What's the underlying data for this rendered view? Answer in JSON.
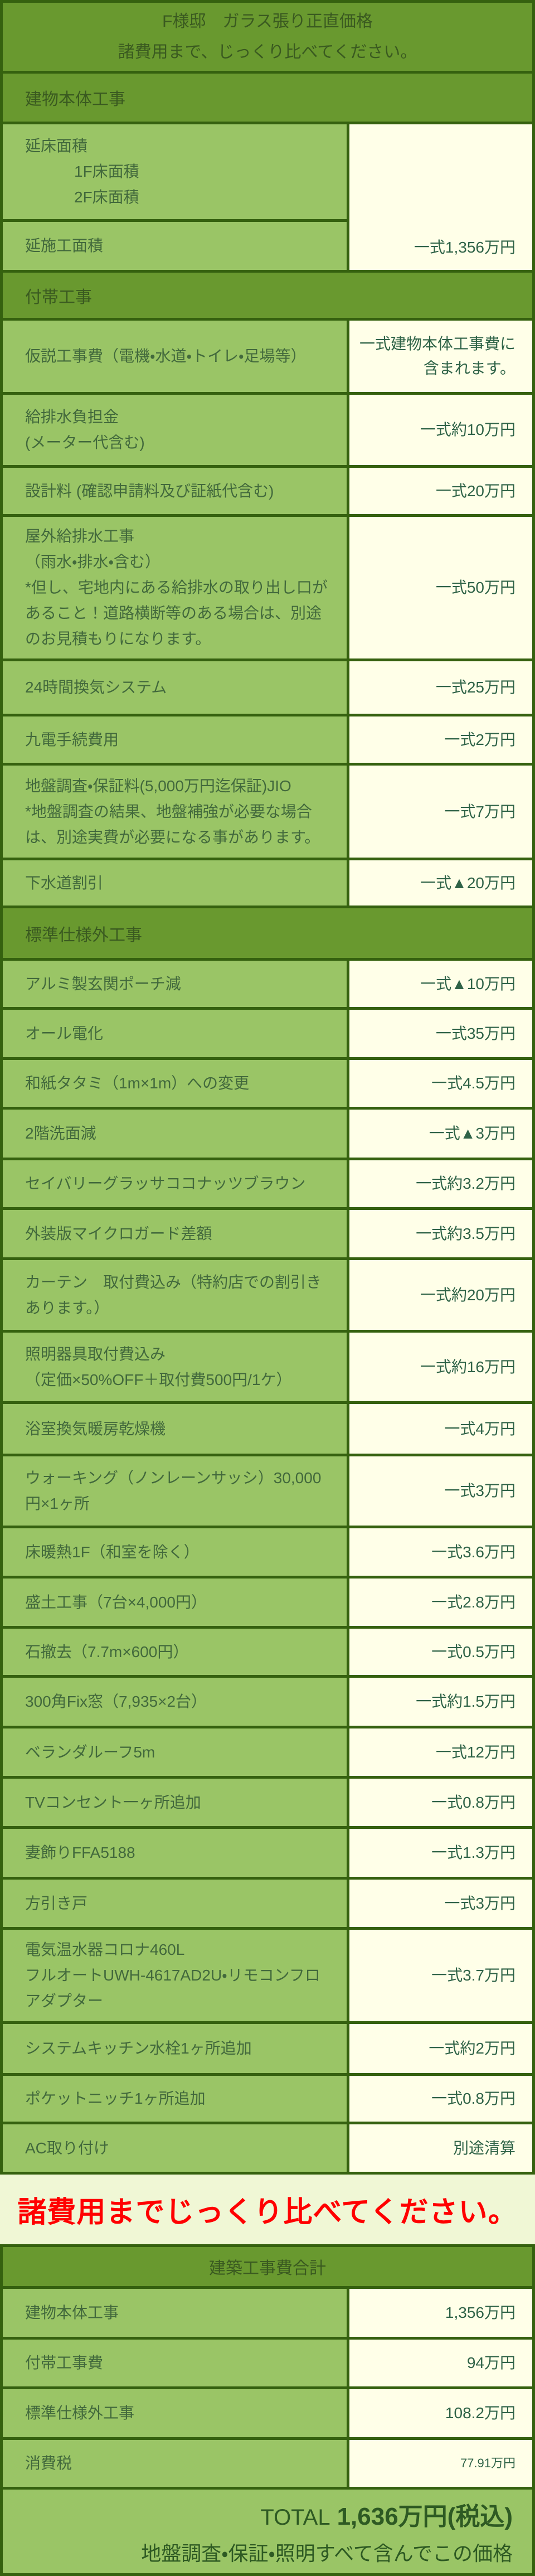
{
  "colors": {
    "border": "#35610f",
    "header_bg": "#69992f",
    "header_text": "#3a5a20",
    "label_bg": "#9ac566",
    "label_text": "#42693c",
    "value_bg": "#ffffe8",
    "value_text": "#2f6347",
    "banner_bg": "#f0f7d5",
    "banner_text": "#ff0000",
    "footer_text": "#2e5a23"
  },
  "header": {
    "title": "F様邸　ガラス張り正直価格",
    "subtitle": "諸費用まで、じっくり比べてください。"
  },
  "main_table": {
    "sections": [
      {
        "heading": "建物本体工事",
        "span_group": {
          "top_label_lines": [
            "延床面積",
            "1F床面積",
            "2F床面積"
          ],
          "top_indent_from": 1,
          "bottom_label": "延施工面積",
          "value": "一式1,356万円"
        }
      },
      {
        "heading": "付帯工事",
        "rows": [
          {
            "lines": [
              "仮説工事費（電機・水道・トイレ・足場等）"
            ],
            "value": "一式建物本体工事費に含まれます。"
          },
          {
            "lines": [
              "給排水負担金",
              "(メーター代含む)"
            ],
            "value": "一式約10万円"
          },
          {
            "lines": [
              "設計料 (確認申請料及び証紙代含む)"
            ],
            "value": "一式20万円"
          },
          {
            "lines": [
              "屋外給排水工事",
              "（雨水・排水・含む）",
              "*但し、宅地内にある給排水の取り出し口があること！道路横断等のある場合は、別途のお見積もりになります。"
            ],
            "value": "一式50万円"
          },
          {
            "lines": [
              "24時間換気システム"
            ],
            "value": "一式25万円"
          },
          {
            "lines": [
              "九電手続費用"
            ],
            "value": "一式2万円"
          },
          {
            "lines": [
              "地盤調査・保証料(5,000万円迄保証)JIO",
              "*地盤調査の結果、地盤補強が必要な場合は、別途実費が必要になる事があります。"
            ],
            "value": "一式7万円"
          },
          {
            "lines": [
              "下水道割引"
            ],
            "value": "一式▲20万円"
          }
        ]
      },
      {
        "heading": "標準仕様外工事",
        "rows": [
          {
            "lines": [
              "アルミ製玄関ポーチ減"
            ],
            "value": "一式▲10万円"
          },
          {
            "lines": [
              "オール電化"
            ],
            "value": "一式35万円"
          },
          {
            "lines": [
              "和紙タタミ（1m×1m）への変更"
            ],
            "value": "一式4.5万円"
          },
          {
            "lines": [
              "2階洗面減"
            ],
            "value": "一式▲3万円"
          },
          {
            "lines": [
              "セイバリーグラッサココナッツブラウン"
            ],
            "value": "一式約3.2万円"
          },
          {
            "lines": [
              "外装版マイクロガード差額"
            ],
            "value": "一式約3.5万円"
          },
          {
            "lines": [
              "カーテン　取付費込み（特約店での割引きあります。）"
            ],
            "value": "一式約20万円"
          },
          {
            "lines": [
              "照明器具取付費込み",
              "（定価×50%OFF＋取付費500円/1ケ）"
            ],
            "value": "一式約16万円"
          },
          {
            "lines": [
              "浴室換気暖房乾燥機"
            ],
            "value": "一式4万円"
          },
          {
            "lines": [
              "ウォーキング（ノンレーンサッシ）30,000円×1ヶ所"
            ],
            "value": "一式3万円"
          },
          {
            "lines": [
              "床暖熱1F（和室を除く）"
            ],
            "value": "一式3.6万円"
          },
          {
            "lines": [
              "盛土工事（7台×4,000円）"
            ],
            "value": "一式2.8万円"
          },
          {
            "lines": [
              "石撤去（7.7m×600円）"
            ],
            "value": "一式0.5万円"
          },
          {
            "lines": [
              "300角Fix窓（7,935×2台）"
            ],
            "value": "一式約1.5万円"
          },
          {
            "lines": [
              "ベランダルーフ5m"
            ],
            "value": "一式12万円"
          },
          {
            "lines": [
              "TVコンセント一ヶ所追加"
            ],
            "value": "一式0.8万円"
          },
          {
            "lines": [
              "妻飾りFFA5188"
            ],
            "value": "一式1.3万円"
          },
          {
            "lines": [
              "方引き戸"
            ],
            "value": "一式3万円"
          },
          {
            "lines": [
              "電気温水器コロナ460L",
              "フルオートUWH-4617AD2U・リモコンフロアダプター"
            ],
            "value": "一式3.7万円"
          },
          {
            "lines": [
              "システムキッチン水栓1ヶ所追加"
            ],
            "value": "一式約2万円"
          },
          {
            "lines": [
              "ポケットニッチ1ヶ所追加"
            ],
            "value": "一式0.8万円"
          },
          {
            "lines": [
              "AC取り付け"
            ],
            "value": "別途清算"
          }
        ]
      }
    ]
  },
  "banner": {
    "text": "諸費用までじっくり比べてください。"
  },
  "summary_table": {
    "heading": "建築工事費合計",
    "rows": [
      {
        "lines": [
          "建物本体工事"
        ],
        "value": "1,356万円"
      },
      {
        "lines": [
          "付帯工事費"
        ],
        "value": "94万円"
      },
      {
        "lines": [
          "標準仕様外工事"
        ],
        "value": "108.2万円"
      },
      {
        "lines": [
          "消費税"
        ],
        "value": "77.91万円",
        "small_value": true
      }
    ],
    "footer": {
      "total_prefix": "TOTAL",
      "total_amount": "1,636万円(税込)",
      "note": "地盤調査・保証・照明すべて含んでこの価格"
    }
  }
}
